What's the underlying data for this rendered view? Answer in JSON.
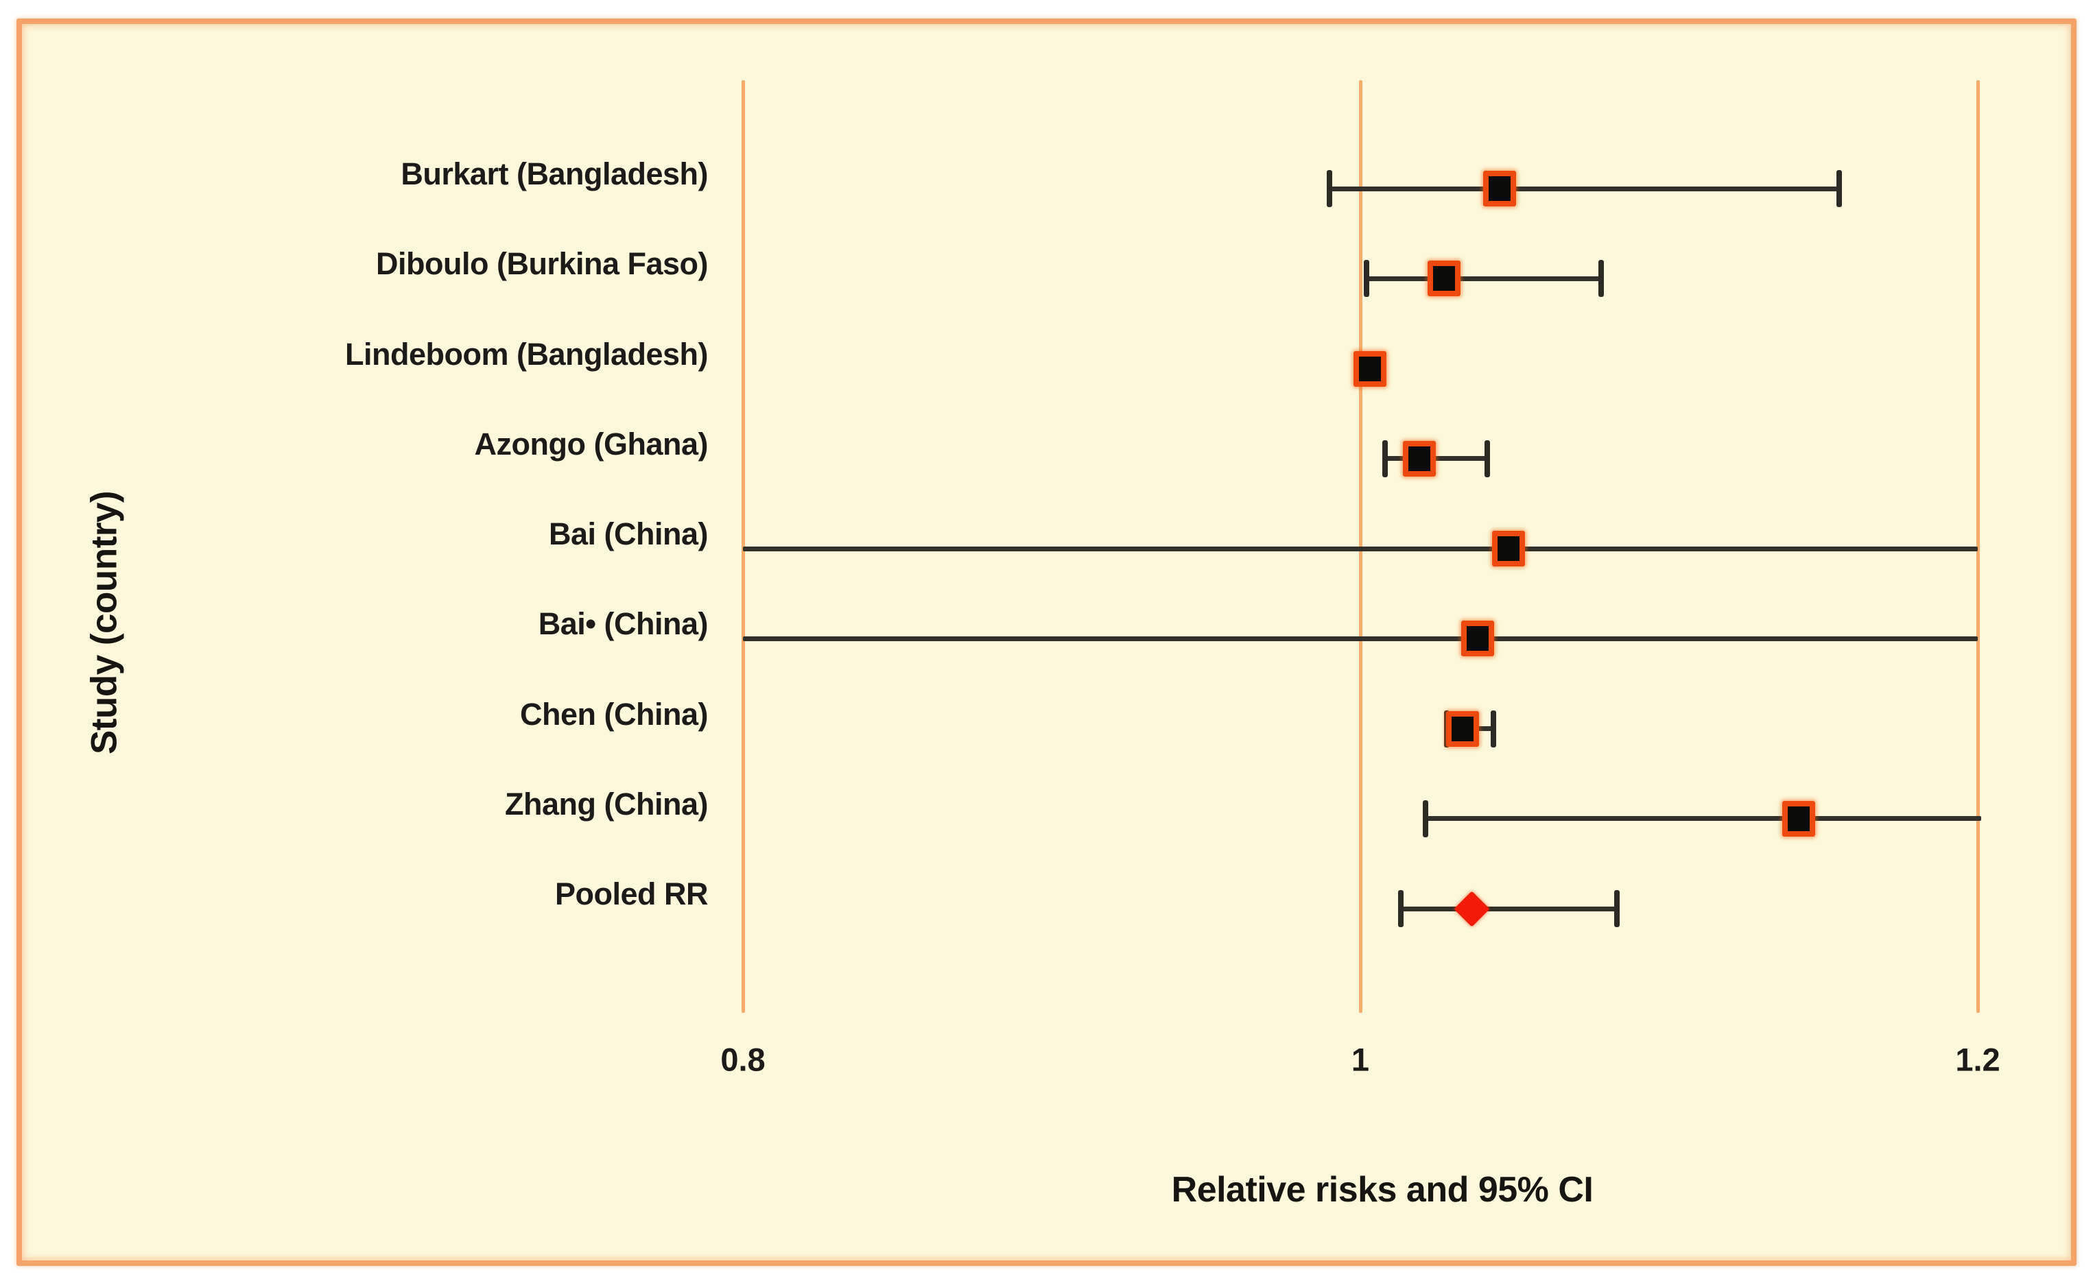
{
  "colors": {
    "page_background": "#FFFFFF",
    "panel_background": "#FDF8DB",
    "frame_border": "#F5A469",
    "gridline": "#F8AD6B",
    "ci_line": "#31302A",
    "square_marker_fill": "#0B0B09",
    "square_marker_border": "#EE4A10",
    "pooled_diamond": "#F21B07",
    "text": "#1C1B19"
  },
  "chart_data": {
    "type": "forest",
    "title": "",
    "xlabel": "Relative risks and 95% CI",
    "ylabel": "Study (country)",
    "xlim": [
      0.8,
      1.2
    ],
    "x_tick_labels": [
      "0.8",
      "1",
      "1.2"
    ],
    "x_tick_values": [
      0.8,
      1.0,
      1.2
    ],
    "grid": "vertical ticks only",
    "legend": null,
    "studies": [
      {
        "label": "Burkart (Bangladesh)",
        "rr": 1.045,
        "ci_low": 0.99,
        "ci_high": 1.155,
        "cap_low": true,
        "cap_high": true,
        "marker": "square"
      },
      {
        "label": "Diboulo (Burkina Faso)",
        "rr": 1.027,
        "ci_low": 1.002,
        "ci_high": 1.078,
        "cap_low": true,
        "cap_high": true,
        "marker": "square"
      },
      {
        "label": "Lindeboom (Bangladesh)",
        "rr": 1.003,
        "ci_low": null,
        "ci_high": null,
        "cap_low": false,
        "cap_high": false,
        "marker": "square"
      },
      {
        "label": "Azongo (Ghana)",
        "rr": 1.019,
        "ci_low": 1.008,
        "ci_high": 1.041,
        "cap_low": true,
        "cap_high": true,
        "marker": "square"
      },
      {
        "label": "Bai (China)",
        "rr": 1.048,
        "ci_low": 0.8,
        "ci_high": 1.2,
        "cap_low": false,
        "cap_high": false,
        "marker": "square"
      },
      {
        "label": "Bai• (China)",
        "rr": 1.038,
        "ci_low": 0.8,
        "ci_high": 1.2,
        "cap_low": false,
        "cap_high": false,
        "marker": "square"
      },
      {
        "label": "Chen (China)",
        "rr": 1.033,
        "ci_low": 1.028,
        "ci_high": 1.043,
        "cap_low": true,
        "cap_high": true,
        "marker": "square"
      },
      {
        "label": "Zhang (China)",
        "rr": 1.142,
        "ci_low": 1.021,
        "ci_high": 1.201,
        "cap_low": true,
        "cap_high": false,
        "marker": "square"
      },
      {
        "label": "Pooled RR",
        "rr": 1.036,
        "ci_low": 1.013,
        "ci_high": 1.083,
        "cap_low": true,
        "cap_high": true,
        "marker": "diamond"
      }
    ]
  }
}
